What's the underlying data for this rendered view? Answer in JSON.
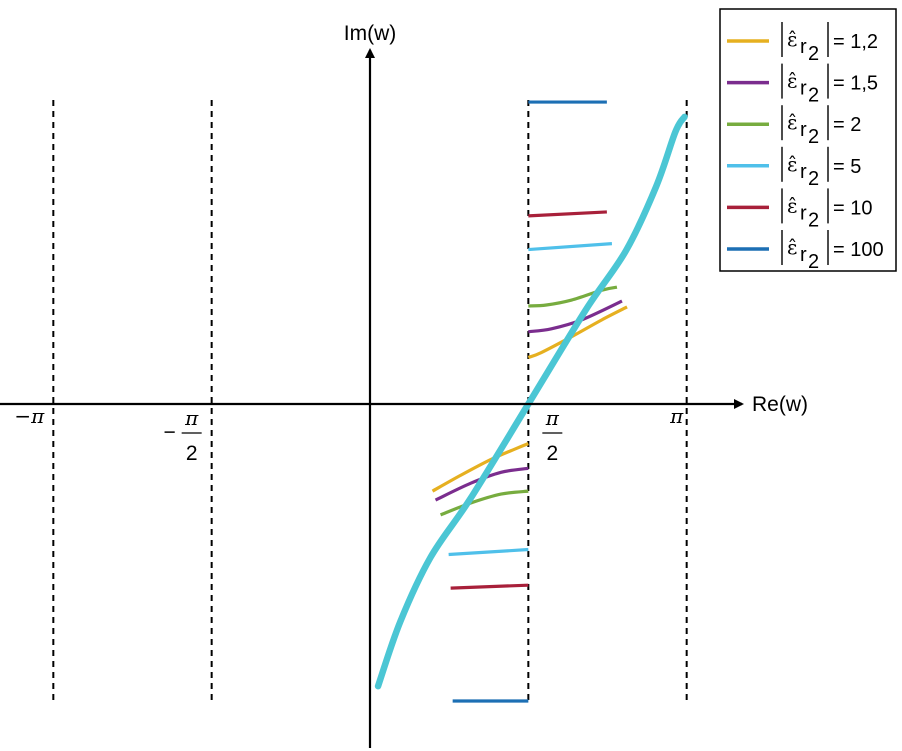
{
  "chart_data": {
    "type": "line",
    "xlabel": "Re(w)",
    "ylabel": "Im(w)",
    "xlim": [
      -3.4,
      4.4
    ],
    "ylim": [
      -3.2,
      3.1
    ],
    "grid": false,
    "legend_placement": "top-right",
    "x_ticks": [
      {
        "value": -3.14159,
        "num": "−π",
        "den": ""
      },
      {
        "value": -1.5708,
        "num": "π",
        "den": "2",
        "sign": "−"
      },
      {
        "value": 1.5708,
        "num": "π",
        "den": "2",
        "sign": ""
      },
      {
        "value": 3.14159,
        "num": "π",
        "den": ""
      }
    ],
    "asymptotes_x": [
      -3.14159,
      -1.5708,
      1.5708,
      3.14159
    ],
    "main_curve": {
      "color": "#4bc6d4",
      "x": [
        0.08,
        0.3,
        0.6,
        1.0,
        1.5708,
        2.14,
        2.54,
        2.84,
        3.03,
        3.12
      ],
      "y": [
        -2.85,
        -2.2,
        -1.55,
        -0.95,
        0.0,
        0.95,
        1.55,
        2.2,
        2.75,
        2.9
      ]
    },
    "legend": [
      {
        "prefix": "ε̂",
        "subscript": "r",
        "subsub": "2",
        "label": "= 1,2",
        "color": "#e6b020"
      },
      {
        "prefix": "ε̂",
        "subscript": "r",
        "subsub": "2",
        "label": "= 1,5",
        "color": "#7b2d8e"
      },
      {
        "prefix": "ε̂",
        "subscript": "r",
        "subsub": "2",
        "label": "= 2",
        "color": "#77ac3f"
      },
      {
        "prefix": "ε̂",
        "subscript": "r",
        "subsub": "2",
        "label": "= 5",
        "color": "#4fc0ea"
      },
      {
        "prefix": "ε̂",
        "subscript": "r",
        "subsub": "2",
        "label": "= 10",
        "color": "#a8203a"
      },
      {
        "prefix": "ε̂",
        "subscript": "r",
        "subsub": "2",
        "label": "= 100",
        "color": "#1c6fb4"
      }
    ],
    "series": [
      {
        "color": "#e6b020",
        "upper": {
          "x": [
            1.5708,
            1.7,
            2.0,
            2.3,
            2.55
          ],
          "y": [
            0.47,
            0.52,
            0.68,
            0.85,
            0.98
          ]
        },
        "lower": {
          "x": [
            0.62,
            0.9,
            1.2,
            1.45,
            1.5708
          ],
          "y": [
            -0.88,
            -0.72,
            -0.56,
            -0.45,
            -0.4
          ]
        }
      },
      {
        "color": "#7b2d8e",
        "upper": {
          "x": [
            1.5708,
            1.8,
            2.1,
            2.5
          ],
          "y": [
            0.73,
            0.76,
            0.85,
            1.04
          ]
        },
        "lower": {
          "x": [
            0.65,
            1.0,
            1.3,
            1.5708
          ],
          "y": [
            -0.97,
            -0.8,
            -0.69,
            -0.65
          ]
        }
      },
      {
        "color": "#77ac3f",
        "upper": {
          "x": [
            1.5708,
            1.75,
            2.0,
            2.3,
            2.45
          ],
          "y": [
            0.99,
            1.0,
            1.05,
            1.15,
            1.18
          ]
        },
        "lower": {
          "x": [
            0.7,
            1.0,
            1.3,
            1.5708
          ],
          "y": [
            -1.12,
            -1.0,
            -0.91,
            -0.88
          ]
        }
      },
      {
        "color": "#4fc0ea",
        "upper": {
          "x": [
            1.5708,
            2.4
          ],
          "y": [
            1.56,
            1.62
          ]
        },
        "lower": {
          "x": [
            0.78,
            1.5708
          ],
          "y": [
            -1.52,
            -1.47
          ]
        }
      },
      {
        "color": "#a8203a",
        "upper": {
          "x": [
            1.5708,
            2.35
          ],
          "y": [
            1.9,
            1.94
          ]
        },
        "lower": {
          "x": [
            0.8,
            1.5708
          ],
          "y": [
            -1.86,
            -1.83
          ]
        }
      },
      {
        "color": "#1c6fb4",
        "upper": {
          "x": [
            1.5708,
            2.35
          ],
          "y": [
            3.05,
            3.05
          ]
        },
        "lower": {
          "x": [
            0.82,
            1.5708
          ],
          "y": [
            -3.0,
            -3.0
          ]
        }
      }
    ]
  }
}
